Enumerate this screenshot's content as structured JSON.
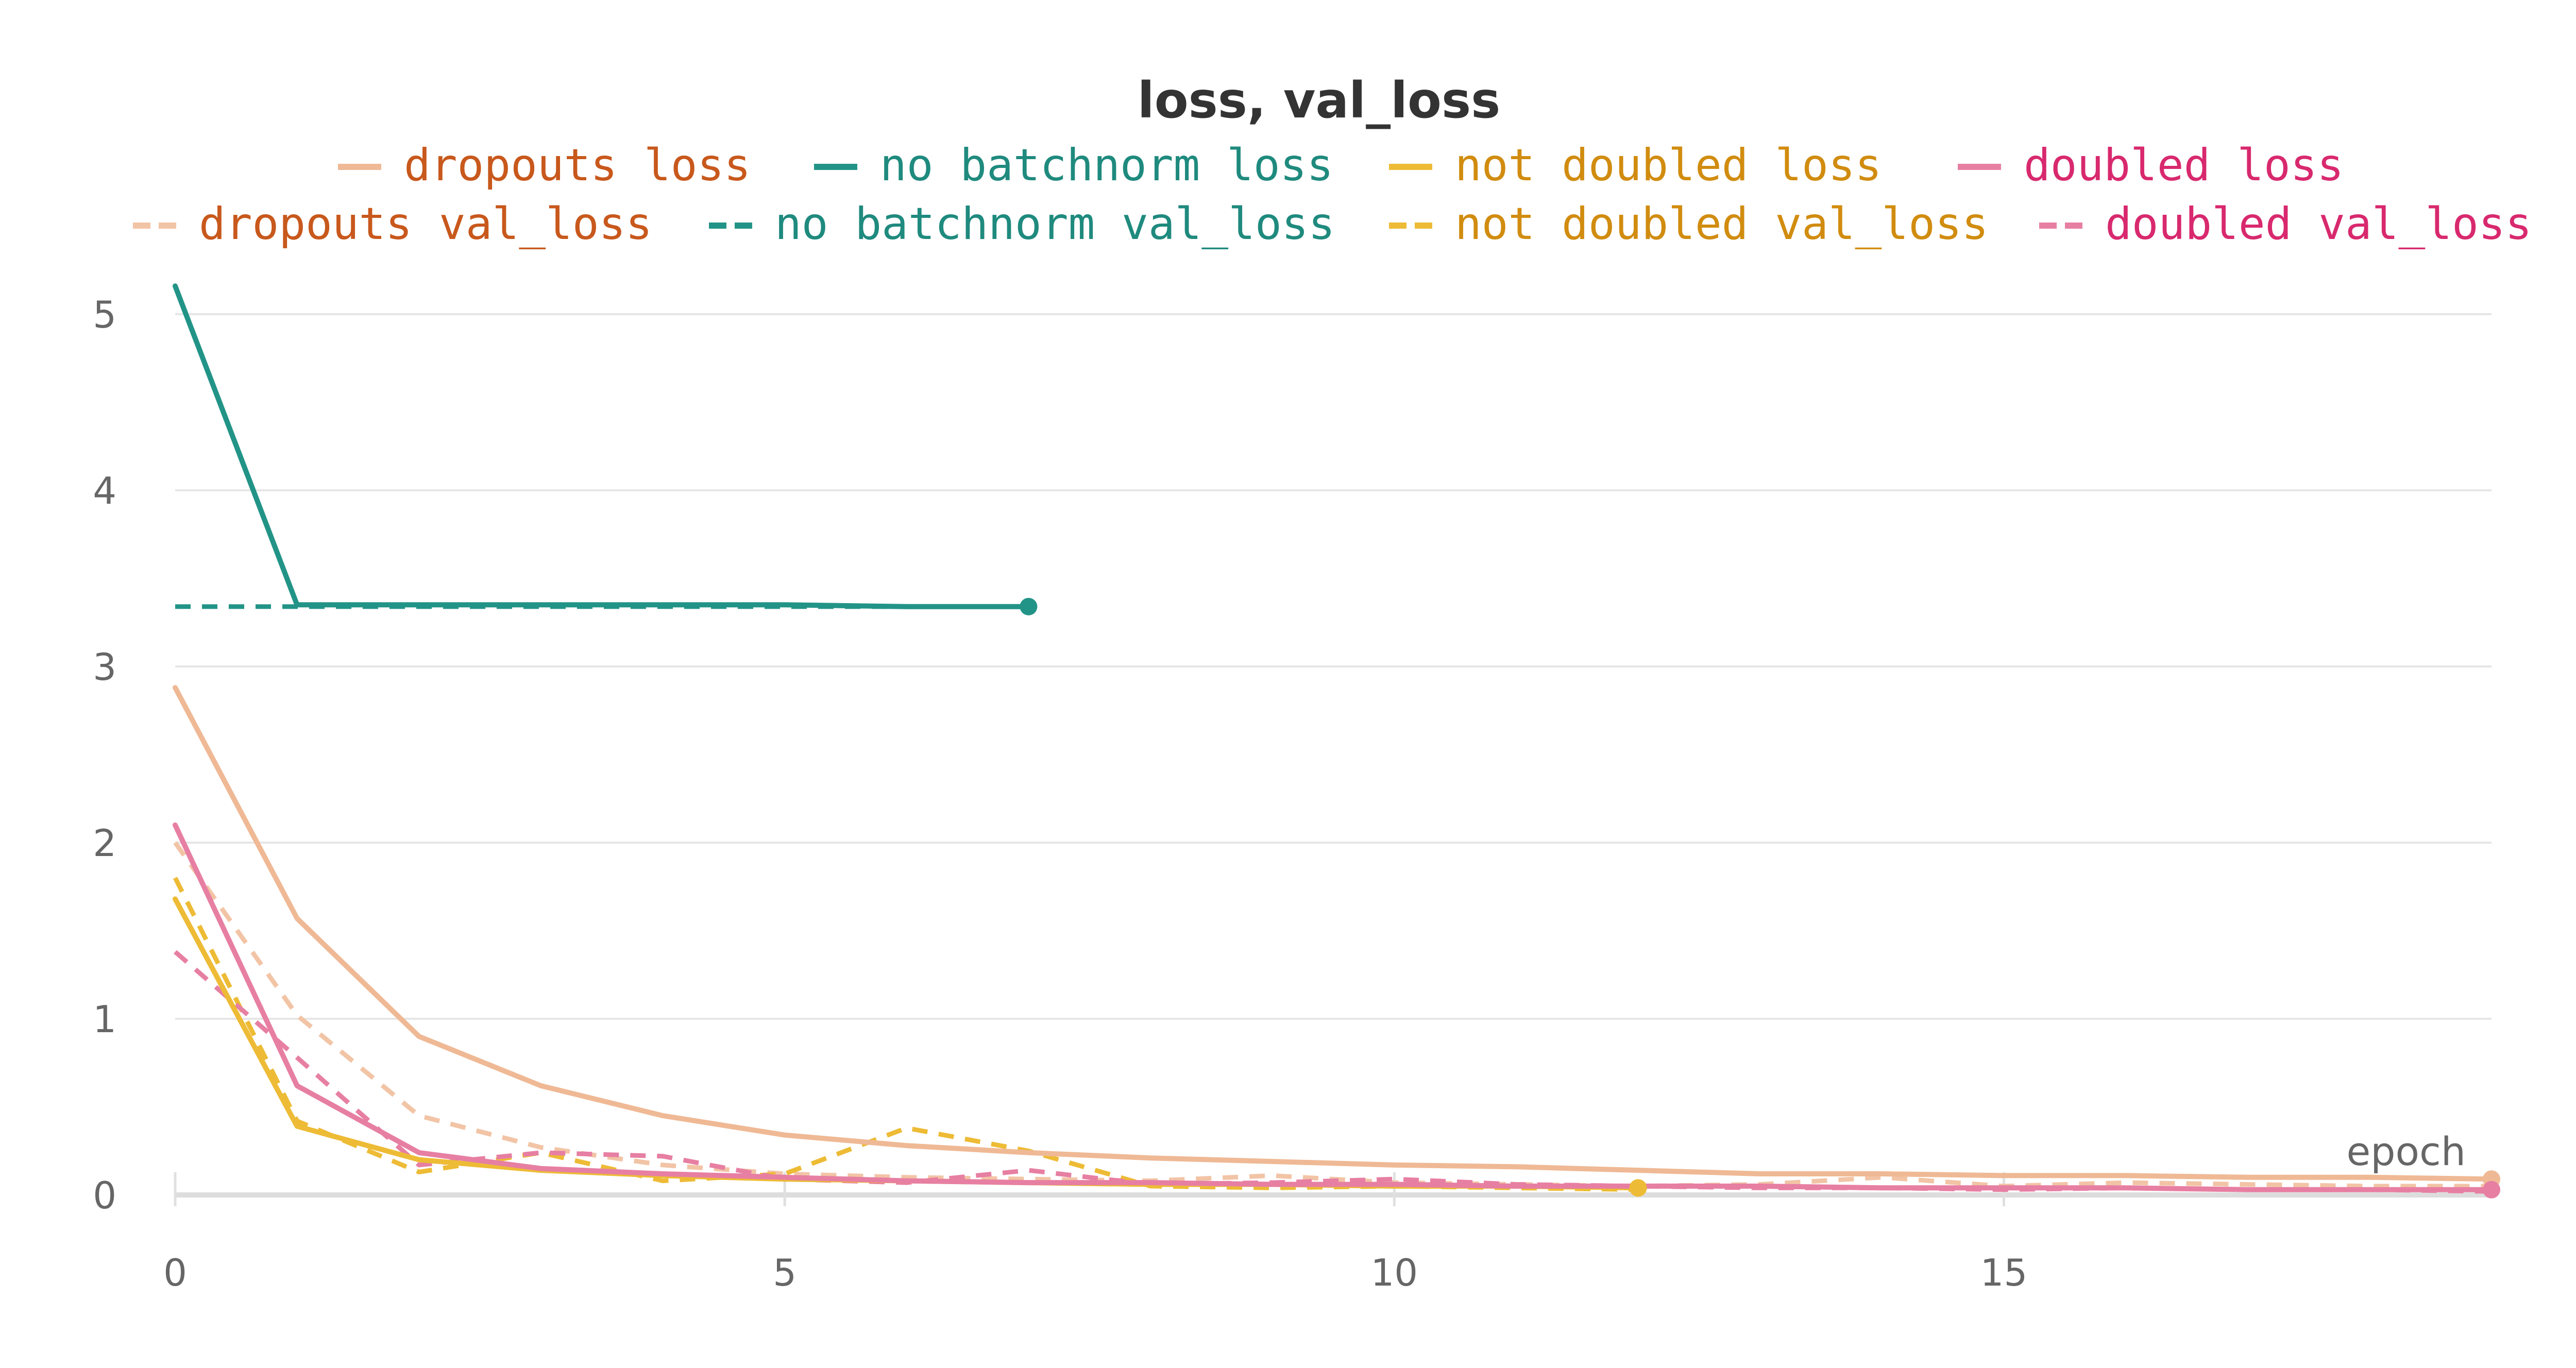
{
  "chart_data": {
    "type": "line",
    "title": "loss, val_loss",
    "xlabel": "epoch",
    "ylabel": "",
    "xlim": [
      0,
      19
    ],
    "ylim": [
      0,
      5
    ],
    "x_ticks": [
      0,
      5,
      10,
      15
    ],
    "y_ticks": [
      0,
      1,
      2,
      3,
      4,
      5
    ],
    "grid": "horizontal",
    "legend_position": "top",
    "series": [
      {
        "name": "dropouts loss",
        "color": "#efb995",
        "text_color": "#c8581c",
        "dash": false,
        "x": [
          0,
          1,
          2,
          3,
          4,
          5,
          6,
          7,
          8,
          9,
          10,
          11,
          12,
          13,
          14,
          15,
          16,
          17,
          18,
          19
        ],
        "y": [
          2.88,
          1.57,
          0.9,
          0.62,
          0.45,
          0.34,
          0.28,
          0.24,
          0.21,
          0.19,
          0.17,
          0.16,
          0.14,
          0.12,
          0.12,
          0.11,
          0.11,
          0.1,
          0.1,
          0.09
        ]
      },
      {
        "name": "no batchnorm loss",
        "color": "#229487",
        "text_color": "#1f8a7e",
        "dash": false,
        "x": [
          0,
          1,
          2,
          3,
          4,
          5,
          6,
          7
        ],
        "y": [
          5.16,
          3.35,
          3.35,
          3.35,
          3.35,
          3.35,
          3.34,
          3.34
        ]
      },
      {
        "name": "not doubled loss",
        "color": "#edbb35",
        "text_color": "#d18c0f",
        "dash": false,
        "x": [
          0,
          1,
          2,
          3,
          4,
          5,
          6,
          7,
          8,
          9,
          10,
          11,
          12
        ],
        "y": [
          1.68,
          0.39,
          0.2,
          0.14,
          0.11,
          0.09,
          0.08,
          0.07,
          0.06,
          0.06,
          0.05,
          0.05,
          0.04
        ]
      },
      {
        "name": "doubled loss",
        "color": "#e77fa3",
        "text_color": "#d8296e",
        "dash": false,
        "x": [
          0,
          1,
          2,
          3,
          4,
          5,
          6,
          7,
          8,
          9,
          10,
          11,
          12,
          13,
          14,
          15,
          16,
          17,
          18,
          19
        ],
        "y": [
          2.1,
          0.62,
          0.24,
          0.15,
          0.12,
          0.1,
          0.08,
          0.07,
          0.07,
          0.06,
          0.06,
          0.05,
          0.05,
          0.05,
          0.04,
          0.04,
          0.04,
          0.03,
          0.03,
          0.03
        ]
      },
      {
        "name": "dropouts val_loss",
        "color": "#f2c4a6",
        "text_color": "#c8581c",
        "dash": true,
        "x": [
          0,
          1,
          2,
          3,
          4,
          5,
          6,
          7,
          8,
          9,
          10,
          11,
          12,
          13,
          14,
          15,
          16,
          17,
          18,
          19
        ],
        "y": [
          2.0,
          1.02,
          0.45,
          0.27,
          0.17,
          0.12,
          0.1,
          0.09,
          0.08,
          0.11,
          0.07,
          0.06,
          0.05,
          0.06,
          0.1,
          0.05,
          0.07,
          0.06,
          0.05,
          0.05
        ]
      },
      {
        "name": "no batchnorm val_loss",
        "color": "#229487",
        "text_color": "#1f8a7e",
        "dash": true,
        "x": [
          0,
          1,
          2,
          3,
          4,
          5,
          6,
          7
        ],
        "y": [
          3.34,
          3.34,
          3.34,
          3.34,
          3.34,
          3.34,
          3.34,
          3.34
        ]
      },
      {
        "name": "not doubled val_loss",
        "color": "#edbb35",
        "text_color": "#d18c0f",
        "dash": true,
        "x": [
          0,
          1,
          2,
          3,
          4,
          5,
          6,
          7,
          8,
          9,
          10,
          11,
          12
        ],
        "y": [
          1.8,
          0.42,
          0.13,
          0.24,
          0.08,
          0.12,
          0.38,
          0.25,
          0.05,
          0.04,
          0.05,
          0.04,
          0.03
        ]
      },
      {
        "name": "doubled val_loss",
        "color": "#e77fa3",
        "text_color": "#d8296e",
        "dash": true,
        "x": [
          0,
          1,
          2,
          3,
          4,
          5,
          6,
          7,
          8,
          9,
          10,
          11,
          12,
          13,
          14,
          15,
          16,
          17,
          18,
          19
        ],
        "y": [
          1.38,
          0.78,
          0.17,
          0.24,
          0.22,
          0.09,
          0.07,
          0.14,
          0.06,
          0.07,
          0.09,
          0.06,
          0.05,
          0.04,
          0.04,
          0.03,
          0.04,
          0.03,
          0.03,
          0.02
        ]
      }
    ]
  }
}
